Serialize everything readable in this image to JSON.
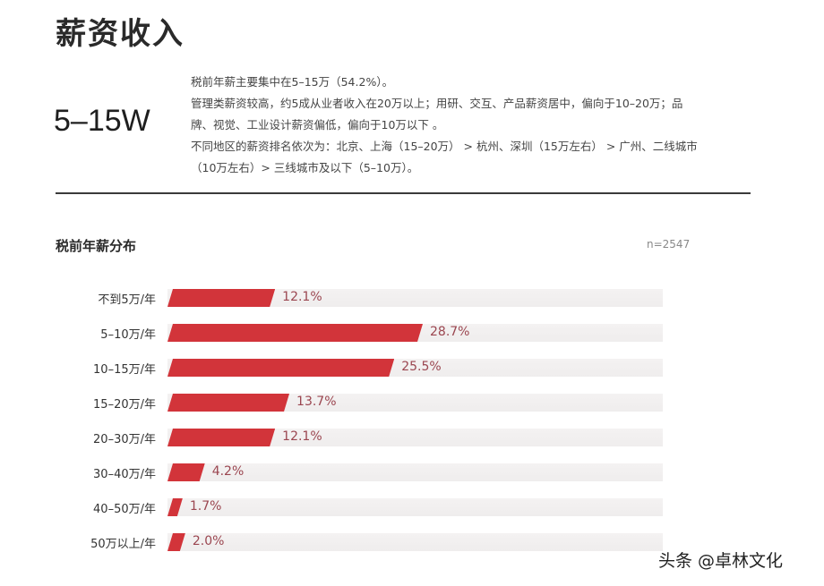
{
  "page": {
    "title": "薪资收入",
    "headline": "5–15W",
    "description_lines": [
      "税前年薪主要集中在5–15万（54.2%）。",
      "管理类薪资较高，约5成从业者收入在20万以上；用研、交互、产品薪资居中，偏向于10–20万；品",
      "牌、视觉、工业设计薪资偏低，偏向于10万以下 。",
      "不同地区的薪资排名依次为：北京、上海（15–20万） > 杭州、深圳（15万左右） > 广州、二线城市",
      "（10万左右）> 三线城市及以下（5–10万）。"
    ],
    "section_title": "税前年薪分布",
    "sample_size": "n=2547",
    "watermark": "头条 @卓林文化"
  },
  "colors": {
    "bar": "#d2343a",
    "track": "#f1efef",
    "value_text": "#9b4650"
  },
  "chart_data": {
    "type": "bar",
    "orientation": "horizontal",
    "title": "税前年薪分布",
    "annotation": "n=2547",
    "categories": [
      "不到5万/年",
      "5–10万/年",
      "10–15万/年",
      "15–20万/年",
      "20–30万/年",
      "30–40万/年",
      "40–50万/年",
      "50万以上/年"
    ],
    "values": [
      12.1,
      28.7,
      25.5,
      13.7,
      12.1,
      4.2,
      1.7,
      2.0
    ],
    "value_labels": [
      "12.1%",
      "28.7%",
      "25.5%",
      "13.7%",
      "12.1%",
      "4.2%",
      "1.7%",
      "2.0%"
    ],
    "xlabel": "",
    "ylabel": "",
    "unit": "%",
    "grid": false,
    "legend": "none"
  }
}
